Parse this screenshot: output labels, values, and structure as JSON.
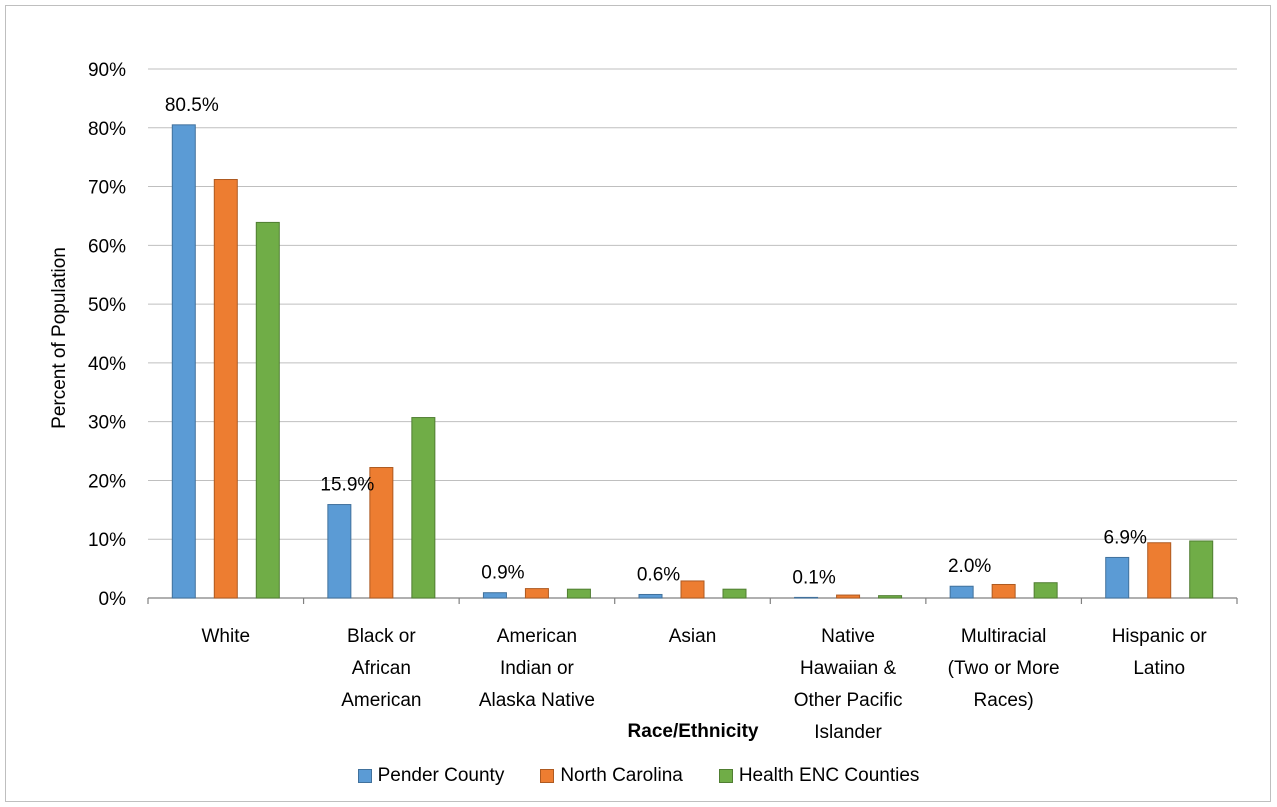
{
  "chart_data": {
    "type": "bar",
    "title": "",
    "xlabel": "Race/Ethnicity",
    "ylabel": "Percent of Population",
    "ylim": [
      0,
      0.9
    ],
    "yticks": [
      "0%",
      "10%",
      "20%",
      "30%",
      "40%",
      "50%",
      "60%",
      "70%",
      "80%",
      "90%"
    ],
    "grid": true,
    "legend_position": "bottom",
    "categories": [
      [
        "White"
      ],
      [
        "Black  or",
        "African",
        "American"
      ],
      [
        "American",
        "Indian or",
        "Alaska Native"
      ],
      [
        "Asian"
      ],
      [
        "Native",
        "Hawaiian &",
        "Other Pacific",
        "Islander"
      ],
      [
        "Multiracial",
        "(Two or More",
        "Races)"
      ],
      [
        "Hispanic or",
        "Latino"
      ]
    ],
    "series": [
      {
        "name": "Pender County",
        "color": "#5b9bd5",
        "values": [
          0.805,
          0.159,
          0.009,
          0.006,
          0.001,
          0.02,
          0.069
        ]
      },
      {
        "name": "North Carolina",
        "color": "#ed7d31",
        "values": [
          0.712,
          0.222,
          0.016,
          0.029,
          0.005,
          0.023,
          0.094
        ]
      },
      {
        "name": "Health ENC Counties",
        "color": "#70ad47",
        "values": [
          0.639,
          0.307,
          0.015,
          0.015,
          0.004,
          0.026,
          0.097
        ]
      }
    ],
    "data_labels": [
      "80.5%",
      "15.9%",
      "0.9%",
      "0.6%",
      "0.1%",
      "2.0%",
      "6.9%"
    ]
  }
}
